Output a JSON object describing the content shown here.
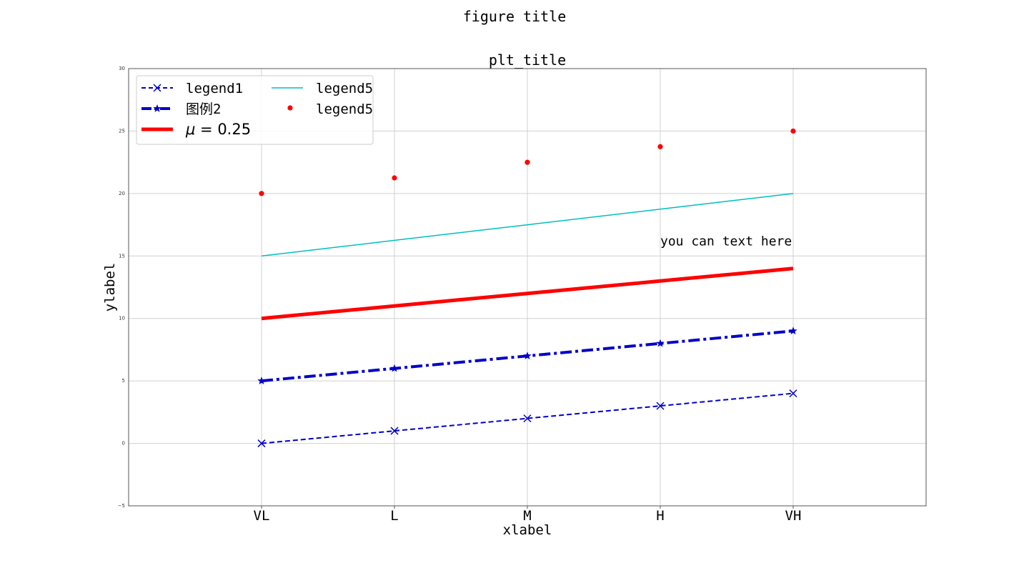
{
  "figure_title": "figure title",
  "chart_data": {
    "type": "line",
    "title": "plt_title",
    "xlabel": "xlabel",
    "ylabel": "ylabel",
    "categories": [
      "VL",
      "L",
      "M",
      "H",
      "VH"
    ],
    "xlim": [
      -1,
      5
    ],
    "ylim": [
      -5,
      30
    ],
    "yticks": [
      -5,
      0,
      5,
      10,
      15,
      20,
      25,
      30
    ],
    "ytick_labels": [
      "−5",
      "0",
      "5",
      "10",
      "15",
      "20",
      "25",
      "30"
    ],
    "grid": true,
    "legend": {
      "placement": "upper-left",
      "columns": 2
    },
    "series": [
      {
        "name": "legend1",
        "kind": "line",
        "values": [
          0,
          1,
          2,
          3,
          4
        ],
        "color": "#0000cc",
        "style": "dashed",
        "marker": "x",
        "width": 2
      },
      {
        "name": "图例2",
        "kind": "line",
        "values": [
          5,
          6,
          7,
          8,
          9
        ],
        "color": "#0000cc",
        "style": "dashdot",
        "marker": "star",
        "width": 4
      },
      {
        "name": "μ = 0.25",
        "legend_italic": "μ",
        "legend_rest": " = 0.25",
        "kind": "line",
        "values": [
          10,
          11,
          12,
          13,
          14
        ],
        "color": "#ff0000",
        "style": "solid",
        "marker": "none",
        "width": 5
      },
      {
        "name": "legend5",
        "kind": "line",
        "values": [
          15,
          16.25,
          17.5,
          18.75,
          20
        ],
        "color": "#00bfbf",
        "style": "solid",
        "marker": "none",
        "width": 1.5
      },
      {
        "name": "legend5",
        "kind": "scatter",
        "values": [
          20,
          21.25,
          22.5,
          23.75,
          25
        ],
        "color": "#ff0000",
        "marker": "dot"
      }
    ],
    "annotations": [
      {
        "text": "you can text here",
        "x": 3,
        "y": 16.2
      }
    ]
  }
}
